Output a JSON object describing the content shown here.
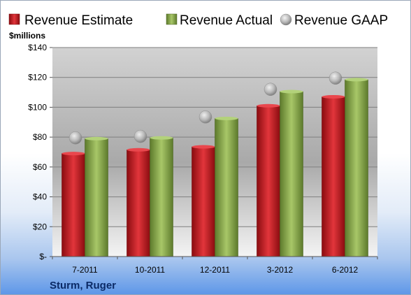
{
  "chart_data": {
    "type": "bar",
    "title": "",
    "ylabel": "$millions",
    "xlabel": "",
    "company": "Sturm, Ruger",
    "categories": [
      "7-2011",
      "10-2011",
      "12-2011",
      "3-2012",
      "6-2012"
    ],
    "ylim": [
      0,
      140
    ],
    "yticks": [
      0,
      20,
      40,
      60,
      80,
      100,
      120,
      140
    ],
    "ytick_labels": [
      "$-",
      "$20",
      "$40",
      "$60",
      "$80",
      "$100",
      "$120",
      "$140"
    ],
    "grid": true,
    "legend_position": "top",
    "series": [
      {
        "name": "Revenue Estimate",
        "kind": "bar",
        "color": "#c8161d",
        "values": [
          69,
          71.5,
          73.5,
          101,
          107
        ]
      },
      {
        "name": "Revenue Actual",
        "kind": "bar",
        "color": "#8dae4b",
        "values": [
          79,
          79.5,
          92.5,
          110.5,
          118.5
        ]
      },
      {
        "name": "Revenue GAAP",
        "kind": "marker",
        "color": "#b4b4b4",
        "values": [
          79.5,
          80.5,
          93.5,
          112,
          119.5
        ]
      }
    ]
  }
}
